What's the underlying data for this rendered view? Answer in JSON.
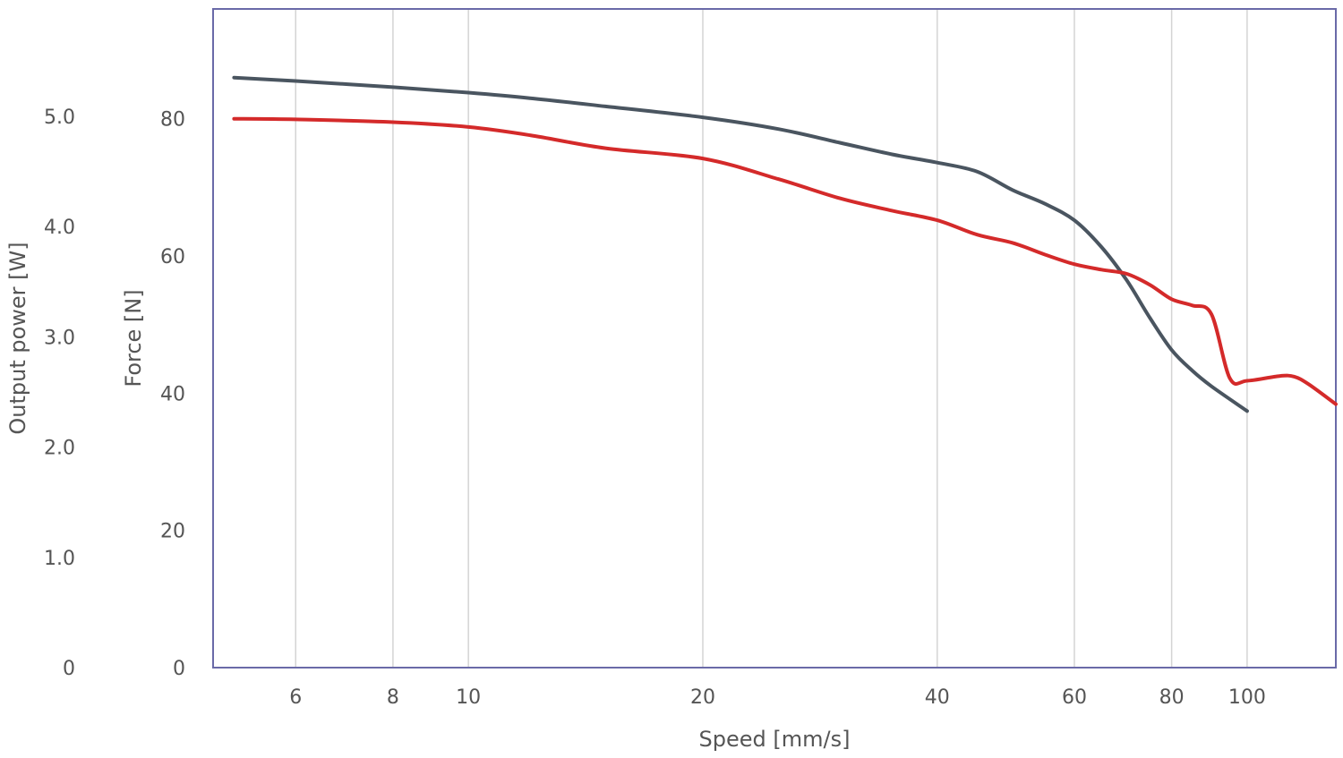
{
  "chart_data": {
    "type": "line",
    "xlabel": "Speed [mm/s]",
    "ylabel_force": "Force [N]",
    "ylabel_power": "Output power [W]",
    "x_scale": "log",
    "xlim": [
      4.7,
      130
    ],
    "x_ticks": [
      6,
      8,
      10,
      20,
      40,
      60,
      80,
      100
    ],
    "force_axis": {
      "ylim": [
        0,
        96
      ],
      "ticks": [
        0,
        20,
        40,
        60,
        80
      ]
    },
    "power_axis": {
      "ylim": [
        0,
        5.0
      ],
      "ticks": [
        "0",
        "1.0",
        "2.0",
        "3.0",
        "4.0",
        "5.0"
      ]
    },
    "grid": "vertical",
    "series": [
      {
        "color": "#4a5560",
        "axis": "force",
        "points": [
          [
            5,
            86
          ],
          [
            6,
            85.5
          ],
          [
            8,
            84.6
          ],
          [
            10,
            83.8
          ],
          [
            12,
            83
          ],
          [
            15,
            81.8
          ],
          [
            20,
            80.2
          ],
          [
            25,
            78.5
          ],
          [
            30,
            76.5
          ],
          [
            35,
            74.8
          ],
          [
            40,
            73.6
          ],
          [
            45,
            72.3
          ],
          [
            50,
            69.6
          ],
          [
            55,
            67.6
          ],
          [
            60,
            65.2
          ],
          [
            65,
            61.3
          ],
          [
            70,
            56.5
          ],
          [
            75,
            51
          ],
          [
            80,
            46.3
          ],
          [
            85,
            43.3
          ],
          [
            90,
            41
          ],
          [
            100,
            37.4
          ]
        ]
      },
      {
        "color": "#d42a2a",
        "axis": "force",
        "points": [
          [
            5,
            80
          ],
          [
            6,
            79.9
          ],
          [
            8,
            79.5
          ],
          [
            10,
            78.8
          ],
          [
            12,
            77.6
          ],
          [
            15,
            75.7
          ],
          [
            20,
            74.2
          ],
          [
            25,
            71.2
          ],
          [
            30,
            68.4
          ],
          [
            35,
            66.6
          ],
          [
            40,
            65.2
          ],
          [
            45,
            63.1
          ],
          [
            50,
            61.9
          ],
          [
            55,
            60.2
          ],
          [
            60,
            58.8
          ],
          [
            65,
            58
          ],
          [
            70,
            57.4
          ],
          [
            75,
            55.8
          ],
          [
            80,
            53.7
          ],
          [
            85,
            52.8
          ],
          [
            90,
            51.5
          ],
          [
            95,
            42.2
          ],
          [
            100,
            41.8
          ],
          [
            110,
            42.5
          ],
          [
            115,
            42.4
          ],
          [
            120,
            41.3
          ],
          [
            130,
            38.4
          ]
        ]
      }
    ]
  }
}
